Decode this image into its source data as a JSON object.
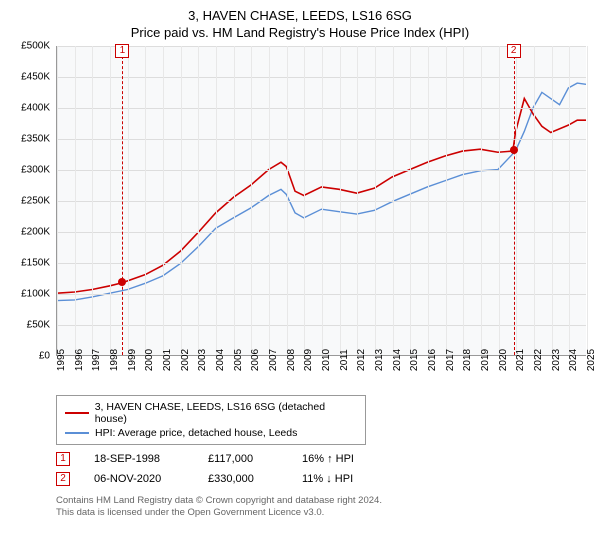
{
  "title": "3, HAVEN CHASE, LEEDS, LS16 6SG",
  "subtitle": "Price paid vs. HM Land Registry's House Price Index (HPI)",
  "chart": {
    "type": "line",
    "background": "#f8f9fa",
    "grid_color": "#ddd",
    "ylim": [
      0,
      500000
    ],
    "ytick_step": 50000,
    "y_labels": [
      "£0",
      "£50K",
      "£100K",
      "£150K",
      "£200K",
      "£250K",
      "£300K",
      "£350K",
      "£400K",
      "£450K",
      "£500K"
    ],
    "xlim": [
      1995,
      2025
    ],
    "x_labels": [
      "1995",
      "1996",
      "1997",
      "1998",
      "1999",
      "2000",
      "2001",
      "2002",
      "2003",
      "2004",
      "2005",
      "2006",
      "2007",
      "2008",
      "2009",
      "2010",
      "2011",
      "2012",
      "2013",
      "2014",
      "2015",
      "2016",
      "2017",
      "2018",
      "2019",
      "2020",
      "2021",
      "2022",
      "2023",
      "2024",
      "2025"
    ],
    "series": [
      {
        "name": "3, HAVEN CHASE, LEEDS, LS16 6SG (detached house)",
        "color": "#cc0000",
        "line_width": 1.6,
        "data": [
          [
            1995,
            100000
          ],
          [
            1996,
            102000
          ],
          [
            1997,
            106000
          ],
          [
            1998,
            112000
          ],
          [
            1998.7,
            117000
          ],
          [
            1999,
            120000
          ],
          [
            2000,
            130000
          ],
          [
            2001,
            145000
          ],
          [
            2002,
            168000
          ],
          [
            2003,
            198000
          ],
          [
            2004,
            230000
          ],
          [
            2005,
            255000
          ],
          [
            2006,
            275000
          ],
          [
            2007,
            300000
          ],
          [
            2007.7,
            312000
          ],
          [
            2008,
            305000
          ],
          [
            2008.5,
            265000
          ],
          [
            2009,
            258000
          ],
          [
            2010,
            272000
          ],
          [
            2011,
            268000
          ],
          [
            2012,
            262000
          ],
          [
            2013,
            270000
          ],
          [
            2014,
            288000
          ],
          [
            2015,
            300000
          ],
          [
            2016,
            312000
          ],
          [
            2017,
            322000
          ],
          [
            2018,
            330000
          ],
          [
            2019,
            333000
          ],
          [
            2020,
            328000
          ],
          [
            2020.85,
            330000
          ],
          [
            2021,
            360000
          ],
          [
            2021.5,
            415000
          ],
          [
            2022,
            390000
          ],
          [
            2022.5,
            370000
          ],
          [
            2023,
            360000
          ],
          [
            2024,
            372000
          ],
          [
            2024.5,
            380000
          ],
          [
            2025,
            380000
          ]
        ]
      },
      {
        "name": "HPI: Average price, detached house, Leeds",
        "color": "#5b8fd6",
        "line_width": 1.4,
        "data": [
          [
            1995,
            88000
          ],
          [
            1996,
            89000
          ],
          [
            1997,
            94000
          ],
          [
            1998,
            100000
          ],
          [
            1999,
            106000
          ],
          [
            2000,
            116000
          ],
          [
            2001,
            128000
          ],
          [
            2002,
            148000
          ],
          [
            2003,
            175000
          ],
          [
            2004,
            205000
          ],
          [
            2005,
            222000
          ],
          [
            2006,
            238000
          ],
          [
            2007,
            258000
          ],
          [
            2007.7,
            268000
          ],
          [
            2008,
            260000
          ],
          [
            2008.5,
            230000
          ],
          [
            2009,
            222000
          ],
          [
            2010,
            236000
          ],
          [
            2011,
            232000
          ],
          [
            2012,
            228000
          ],
          [
            2013,
            234000
          ],
          [
            2014,
            248000
          ],
          [
            2015,
            260000
          ],
          [
            2016,
            272000
          ],
          [
            2017,
            282000
          ],
          [
            2018,
            292000
          ],
          [
            2019,
            298000
          ],
          [
            2020,
            300000
          ],
          [
            2021,
            330000
          ],
          [
            2021.5,
            362000
          ],
          [
            2022,
            400000
          ],
          [
            2022.5,
            425000
          ],
          [
            2023,
            415000
          ],
          [
            2023.5,
            405000
          ],
          [
            2024,
            432000
          ],
          [
            2024.5,
            440000
          ],
          [
            2025,
            438000
          ]
        ]
      }
    ],
    "markers": [
      {
        "n": "1",
        "x": 1998.7,
        "y": 117000
      },
      {
        "n": "2",
        "x": 2020.85,
        "y": 330000
      }
    ]
  },
  "legend": [
    {
      "color": "#cc0000",
      "label": "3, HAVEN CHASE, LEEDS, LS16 6SG (detached house)"
    },
    {
      "color": "#5b8fd6",
      "label": "HPI: Average price, detached house, Leeds"
    }
  ],
  "sales": [
    {
      "n": "1",
      "date": "18-SEP-1998",
      "price": "£117,000",
      "diff": "16% ↑ HPI"
    },
    {
      "n": "2",
      "date": "06-NOV-2020",
      "price": "£330,000",
      "diff": "11% ↓ HPI"
    }
  ],
  "footer_line1": "Contains HM Land Registry data © Crown copyright and database right 2024.",
  "footer_line2": "This data is licensed under the Open Government Licence v3.0."
}
